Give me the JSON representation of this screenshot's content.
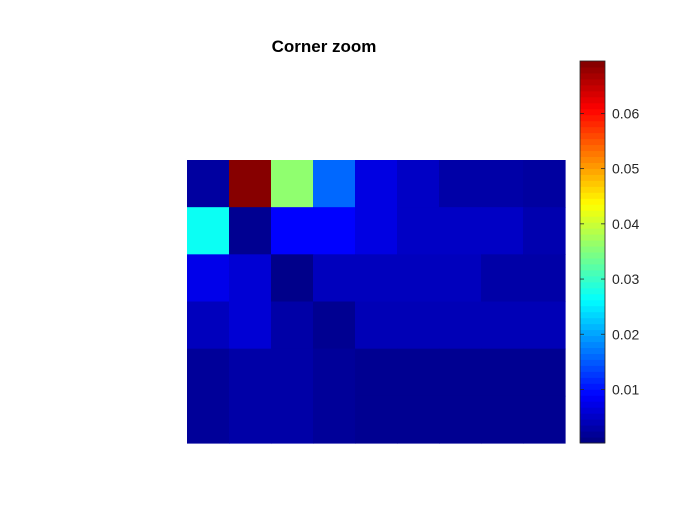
{
  "chart_data": {
    "type": "heatmap",
    "title": "Corner zoom",
    "xlabel": "",
    "ylabel": "",
    "colormap": "jet",
    "clim": [
      0.0003,
      0.0695
    ],
    "colorbar_ticks": [
      0.01,
      0.02,
      0.03,
      0.04,
      0.05,
      0.06
    ],
    "colorbar_tick_labels": [
      "0.01",
      "0.02",
      "0.03",
      "0.04",
      "0.05",
      "0.06"
    ],
    "grid": false,
    "values": [
      [
        0.0025,
        0.069,
        0.036,
        0.016,
        0.007,
        0.005,
        0.003,
        0.003,
        0.0025
      ],
      [
        0.027,
        0.0015,
        0.009,
        0.009,
        0.007,
        0.005,
        0.005,
        0.005,
        0.0035
      ],
      [
        0.0075,
        0.006,
        0.001,
        0.0045,
        0.0045,
        0.0045,
        0.0045,
        0.003,
        0.003
      ],
      [
        0.0045,
        0.006,
        0.003,
        0.0015,
        0.004,
        0.004,
        0.004,
        0.004,
        0.004
      ],
      [
        0.002,
        0.003,
        0.003,
        0.002,
        0.0015,
        0.0015,
        0.0015,
        0.0015,
        0.0015
      ],
      [
        0.002,
        0.003,
        0.003,
        0.002,
        0.0015,
        0.0015,
        0.0015,
        0.0015,
        0.0015
      ]
    ]
  }
}
